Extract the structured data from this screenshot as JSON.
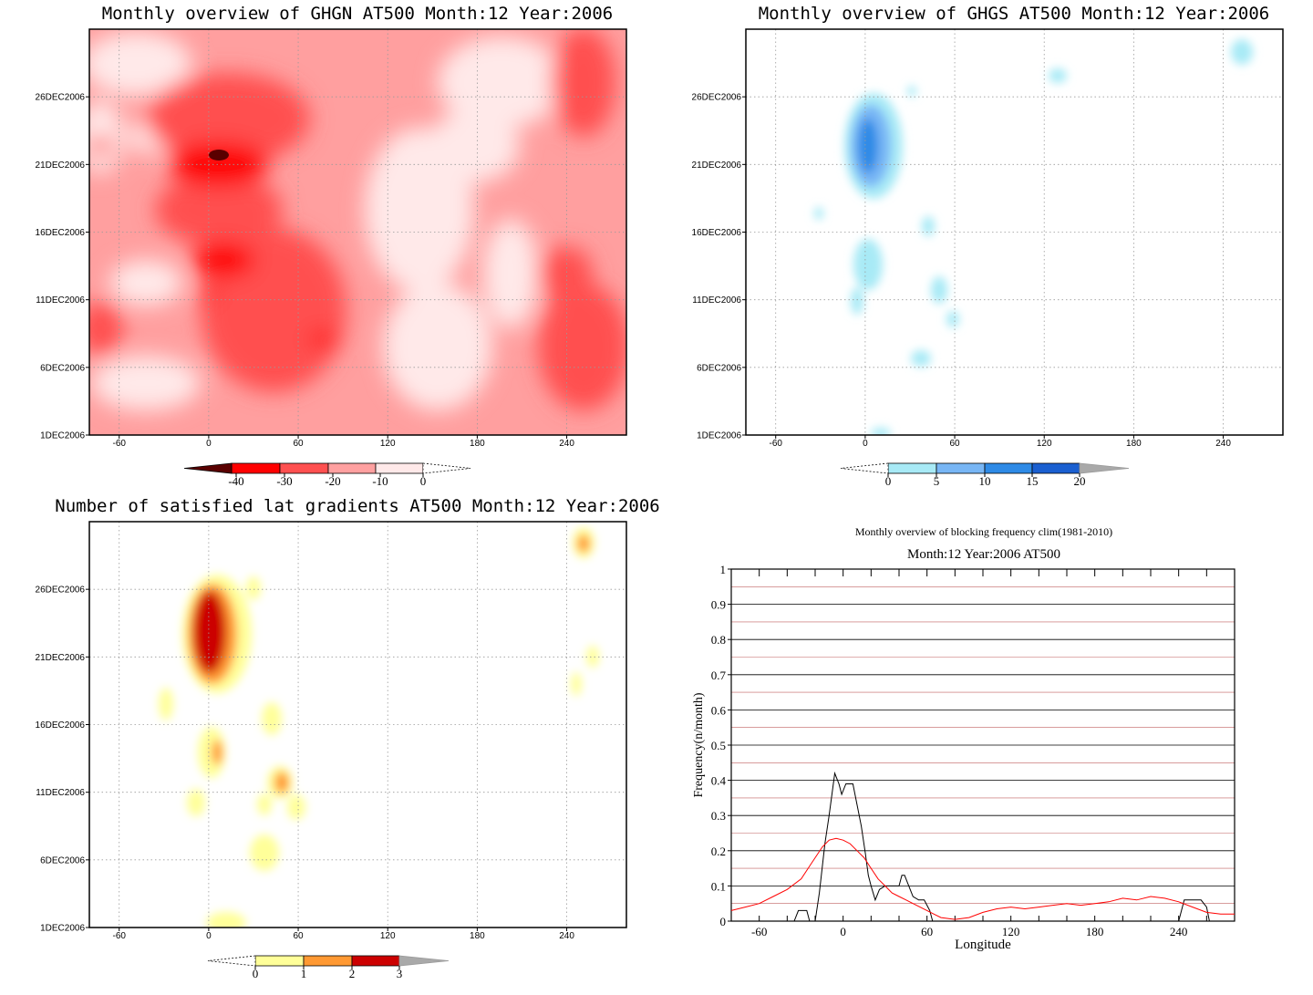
{
  "chart_data": [
    {
      "type": "heatmap",
      "title": "Monthly overview of GHGN AT500 Month:12 Year:2006",
      "x_ticks": [
        "-60",
        "0",
        "60",
        "120",
        "180",
        "240"
      ],
      "y_ticks": [
        "1DEC2006",
        "6DEC2006",
        "11DEC2006",
        "16DEC2006",
        "21DEC2006",
        "26DEC2006"
      ],
      "xlim": [
        -80,
        280
      ],
      "ylim": [
        1,
        31
      ],
      "colorbar": {
        "ticks": [
          "-40",
          "-30",
          "-20",
          "-10",
          "0"
        ],
        "colors": [
          "#5a0000",
          "#ff0000",
          "#ff5050",
          "#ffa0a0",
          "#ffe9e9"
        ]
      }
    },
    {
      "type": "heatmap",
      "title": "Monthly overview of GHGS AT500 Month:12 Year:2006",
      "x_ticks": [
        "-60",
        "0",
        "60",
        "120",
        "180",
        "240"
      ],
      "y_ticks": [
        "1DEC2006",
        "6DEC2006",
        "11DEC2006",
        "16DEC2006",
        "21DEC2006",
        "26DEC2006"
      ],
      "xlim": [
        -80,
        280
      ],
      "ylim": [
        1,
        31
      ],
      "colorbar": {
        "ticks": [
          "0",
          "5",
          "10",
          "15",
          "20"
        ],
        "colors": [
          "#ffffff",
          "#a8eaf6",
          "#78b6f5",
          "#2e8ae6",
          "#1a5fd0",
          "#a9a9a9"
        ]
      }
    },
    {
      "type": "heatmap",
      "title": "Number of satisfied lat gradients AT500 Month:12 Year:2006",
      "x_ticks": [
        "-60",
        "0",
        "60",
        "120",
        "180",
        "240"
      ],
      "y_ticks": [
        "1DEC2006",
        "6DEC2006",
        "11DEC2006",
        "16DEC2006",
        "21DEC2006",
        "26DEC2006"
      ],
      "xlim": [
        -80,
        280
      ],
      "ylim": [
        1,
        31
      ],
      "colorbar": {
        "ticks": [
          "0",
          "1",
          "2",
          "3"
        ],
        "colors": [
          "#ffffff",
          "#ffff99",
          "#ff9933",
          "#cc0000",
          "#a9a9a9"
        ]
      }
    },
    {
      "type": "line",
      "title": "Monthly overview of blocking frequency clim(1981-2010)",
      "subtitle": "Month:12 Year:2006  AT500",
      "xlabel": "Longitude",
      "ylabel": "Frequency(n/month)",
      "xlim": [
        -80,
        280
      ],
      "ylim": [
        0,
        1
      ],
      "x_ticks": [
        "-60",
        "0",
        "60",
        "120",
        "180",
        "240"
      ],
      "y_ticks": [
        "0",
        "0.1",
        "0.2",
        "0.3",
        "0.4",
        "0.5",
        "0.6",
        "0.7",
        "0.8",
        "0.9",
        "1"
      ],
      "series": [
        {
          "color": "#000000",
          "points": [
            [
              -80,
              0
            ],
            [
              -35,
              0
            ],
            [
              -32,
              0.03
            ],
            [
              -26,
              0.03
            ],
            [
              -24,
              0
            ],
            [
              -20,
              0
            ],
            [
              -17,
              0.08
            ],
            [
              -13,
              0.22
            ],
            [
              -10,
              0.3
            ],
            [
              -6,
              0.42
            ],
            [
              -3,
              0.39
            ],
            [
              -1,
              0.36
            ],
            [
              2,
              0.39
            ],
            [
              7,
              0.39
            ],
            [
              10,
              0.33
            ],
            [
              13,
              0.27
            ],
            [
              16,
              0.19
            ],
            [
              18,
              0.13
            ],
            [
              20,
              0.1
            ],
            [
              23,
              0.06
            ],
            [
              26,
              0.09
            ],
            [
              30,
              0.1
            ],
            [
              36,
              0.1
            ],
            [
              40,
              0.1
            ],
            [
              42,
              0.13
            ],
            [
              44,
              0.13
            ],
            [
              47,
              0.1
            ],
            [
              50,
              0.07
            ],
            [
              54,
              0.06
            ],
            [
              58,
              0.06
            ],
            [
              62,
              0.03
            ],
            [
              64,
              0
            ],
            [
              240,
              0
            ],
            [
              244,
              0.06
            ],
            [
              256,
              0.06
            ],
            [
              260,
              0.04
            ],
            [
              262,
              0
            ],
            [
              280,
              0
            ]
          ]
        },
        {
          "color": "#ff0000",
          "points": [
            [
              -80,
              0.03
            ],
            [
              -70,
              0.04
            ],
            [
              -60,
              0.05
            ],
            [
              -50,
              0.07
            ],
            [
              -40,
              0.09
            ],
            [
              -30,
              0.12
            ],
            [
              -25,
              0.15
            ],
            [
              -20,
              0.18
            ],
            [
              -15,
              0.21
            ],
            [
              -10,
              0.23
            ],
            [
              -5,
              0.235
            ],
            [
              0,
              0.23
            ],
            [
              5,
              0.22
            ],
            [
              10,
              0.2
            ],
            [
              15,
              0.18
            ],
            [
              20,
              0.15
            ],
            [
              25,
              0.12
            ],
            [
              30,
              0.1
            ],
            [
              35,
              0.08
            ],
            [
              40,
              0.07
            ],
            [
              45,
              0.06
            ],
            [
              50,
              0.05
            ],
            [
              55,
              0.04
            ],
            [
              60,
              0.03
            ],
            [
              65,
              0.02
            ],
            [
              70,
              0.01
            ],
            [
              80,
              0.005
            ],
            [
              90,
              0.01
            ],
            [
              100,
              0.025
            ],
            [
              110,
              0.035
            ],
            [
              120,
              0.04
            ],
            [
              130,
              0.035
            ],
            [
              140,
              0.04
            ],
            [
              150,
              0.045
            ],
            [
              160,
              0.05
            ],
            [
              170,
              0.045
            ],
            [
              180,
              0.05
            ],
            [
              190,
              0.055
            ],
            [
              200,
              0.065
            ],
            [
              210,
              0.06
            ],
            [
              220,
              0.07
            ],
            [
              230,
              0.065
            ],
            [
              240,
              0.055
            ],
            [
              250,
              0.04
            ],
            [
              260,
              0.025
            ],
            [
              270,
              0.02
            ],
            [
              280,
              0.02
            ]
          ]
        }
      ]
    }
  ]
}
